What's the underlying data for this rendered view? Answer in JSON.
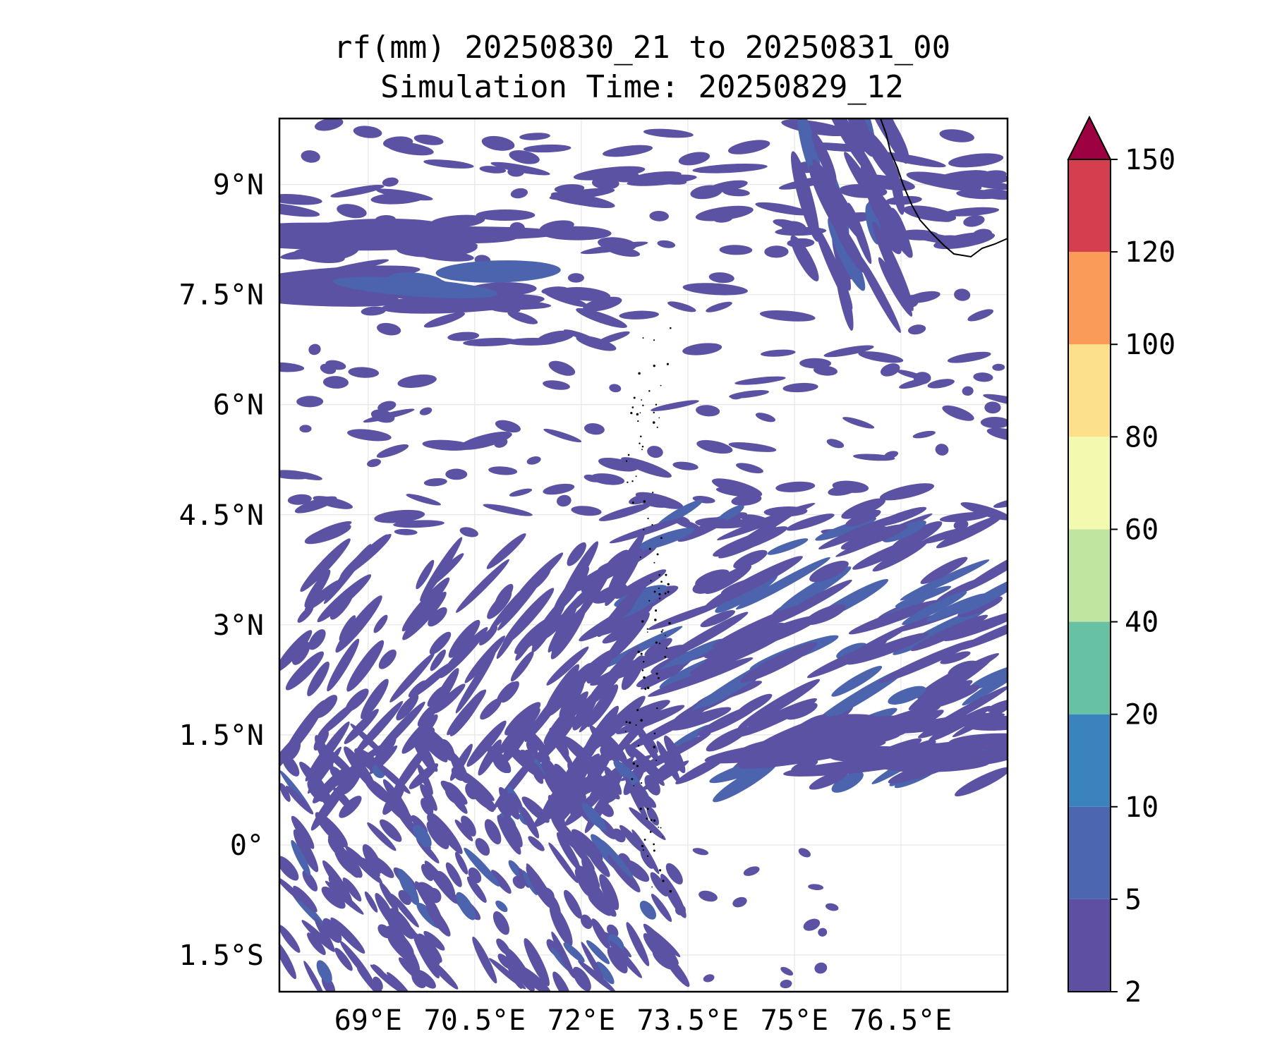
{
  "figure": {
    "title_line1": "rf(mm) 20250830_21 to 20250831_00",
    "title_line2": "Simulation Time: 20250829_12"
  },
  "map": {
    "lon_range": [
      67.75,
      78.0
    ],
    "lat_range": [
      -2.0,
      9.9
    ],
    "x_ticks": [
      {
        "value": 69.0,
        "label": "69°E"
      },
      {
        "value": 70.5,
        "label": "70.5°E"
      },
      {
        "value": 72.0,
        "label": "72°E"
      },
      {
        "value": 73.5,
        "label": "73.5°E"
      },
      {
        "value": 75.0,
        "label": "75°E"
      },
      {
        "value": 76.5,
        "label": "76.5°E"
      }
    ],
    "y_ticks": [
      {
        "value": 9.0,
        "label": "9°N"
      },
      {
        "value": 7.5,
        "label": "7.5°N"
      },
      {
        "value": 6.0,
        "label": "6°N"
      },
      {
        "value": 4.5,
        "label": "4.5°N"
      },
      {
        "value": 3.0,
        "label": "3°N"
      },
      {
        "value": 1.5,
        "label": "1.5°N"
      },
      {
        "value": 0.0,
        "label": "0°"
      },
      {
        "value": -1.5,
        "label": "1.5°S"
      }
    ],
    "grid": true,
    "rain_color": "#5b52a3",
    "rain_dark_color": "#4b64ad",
    "coastline_color": "#000000"
  },
  "colorbar": {
    "levels": [
      {
        "label": "2",
        "color": "#5e4fa2"
      },
      {
        "label": "5",
        "color": "#4c66b0"
      },
      {
        "label": "10",
        "color": "#3a83bc"
      },
      {
        "label": "20",
        "color": "#66c1a5"
      },
      {
        "label": "40",
        "color": "#bfe5a0"
      },
      {
        "label": "60",
        "color": "#f3f9ae"
      },
      {
        "label": "80",
        "color": "#fde08b"
      },
      {
        "label": "100",
        "color": "#fa9c58"
      },
      {
        "label": "120",
        "color": "#d53e4f"
      },
      {
        "label": "150",
        "color": ""
      }
    ],
    "extend_color": "#9e0142"
  }
}
